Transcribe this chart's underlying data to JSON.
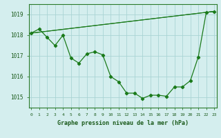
{
  "x": [
    0,
    1,
    2,
    3,
    4,
    5,
    6,
    7,
    8,
    9,
    10,
    11,
    12,
    13,
    14,
    15,
    16,
    17,
    18,
    19,
    20,
    21,
    22,
    23
  ],
  "line_main": [
    1018.1,
    1018.3,
    1017.9,
    1017.5,
    1018.0,
    1016.9,
    1016.65,
    1017.1,
    1017.2,
    1017.05,
    1016.0,
    1015.75,
    1015.2,
    1015.2,
    1014.95,
    1015.1,
    1015.1,
    1015.05,
    1015.5,
    1015.5,
    1015.8,
    1016.95,
    1019.1,
    1019.15
  ],
  "line_trend1_x": [
    0,
    23
  ],
  "line_trend1_y": [
    1018.1,
    1019.15
  ],
  "line_trend2_x": [
    0,
    23
  ],
  "line_trend2_y": [
    1018.1,
    1019.15
  ],
  "ylabel_values": [
    1015,
    1016,
    1017,
    1018,
    1019
  ],
  "xlabel_values": [
    0,
    1,
    2,
    3,
    4,
    5,
    6,
    7,
    8,
    9,
    10,
    11,
    12,
    13,
    14,
    15,
    16,
    17,
    18,
    19,
    20,
    21,
    22,
    23
  ],
  "xlabel": "Graphe pression niveau de la mer (hPa)",
  "line_color": "#1a7a1a",
  "bg_color": "#d4eeee",
  "grid_color": "#aad4d4",
  "ylim": [
    1014.5,
    1019.5
  ],
  "xlim": [
    -0.3,
    23.3
  ],
  "figwidth": 3.2,
  "figheight": 2.0,
  "dpi": 100
}
